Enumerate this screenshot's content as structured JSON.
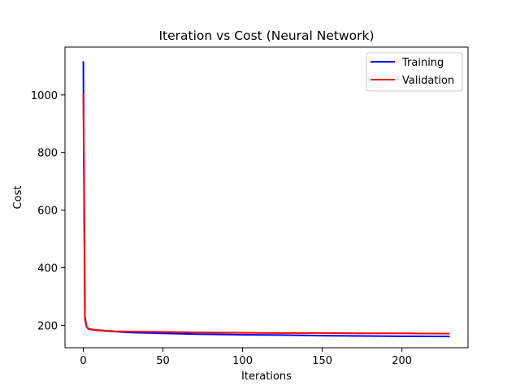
{
  "chart_data": {
    "type": "line",
    "title": "Iteration vs Cost (Neural Network)",
    "xlabel": "Iterations",
    "ylabel": "Cost",
    "xlim": [
      -11.5,
      241.5
    ],
    "ylim": [
      122,
      1166
    ],
    "xticks": [
      0,
      50,
      100,
      150,
      200
    ],
    "yticks": [
      200,
      400,
      600,
      800,
      1000
    ],
    "grid": false,
    "legend_position": "top-right",
    "series": [
      {
        "name": "Training",
        "color": "#0000ff",
        "x": [
          0,
          1,
          2,
          3,
          5,
          10,
          20,
          30,
          50,
          75,
          100,
          125,
          150,
          175,
          200,
          230
        ],
        "y": [
          1117,
          230,
          196,
          188,
          185,
          182,
          178,
          175,
          172,
          169,
          167,
          166,
          164,
          163,
          162,
          161
        ]
      },
      {
        "name": "Validation",
        "color": "#ff0000",
        "x": [
          0,
          1,
          2,
          3,
          5,
          10,
          20,
          30,
          50,
          75,
          100,
          125,
          150,
          175,
          200,
          230
        ],
        "y": [
          1005,
          220,
          195,
          189,
          186,
          183,
          179,
          178,
          177,
          175,
          174,
          173,
          173,
          172,
          172,
          171
        ]
      }
    ]
  }
}
